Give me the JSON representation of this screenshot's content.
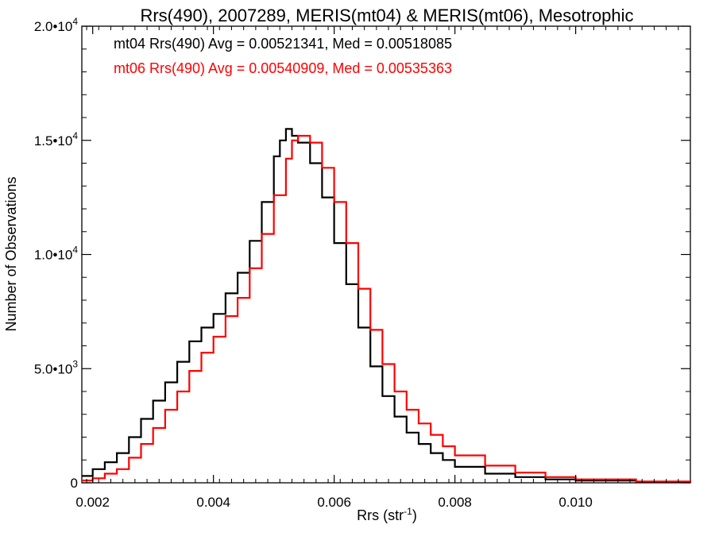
{
  "chart_data": {
    "type": "line",
    "title": "Rrs(490), 2007289, MERIS(mt04) & MERIS(mt06), Mesotrophic",
    "xlabel": "Rrs (str",
    "xlabel_sup": "-1",
    "xlabel_tail": ")",
    "ylabel": "Number of Observations",
    "xlim": [
      0.00182,
      0.0119
    ],
    "ylim": [
      0,
      20000
    ],
    "xticks": [
      {
        "value": 0.002,
        "label": "0.002"
      },
      {
        "value": 0.004,
        "label": "0.004"
      },
      {
        "value": 0.006,
        "label": "0.006"
      },
      {
        "value": 0.008,
        "label": "0.008"
      },
      {
        "value": 0.01,
        "label": "0.010"
      }
    ],
    "yticks": [
      {
        "value": 0,
        "mant": "0",
        "exp": ""
      },
      {
        "value": 5000,
        "mant": "5.0•10",
        "exp": "3"
      },
      {
        "value": 10000,
        "mant": "1.0•10",
        "exp": "4"
      },
      {
        "value": 15000,
        "mant": "1.5•10",
        "exp": "4"
      },
      {
        "value": 20000,
        "mant": "2.0•10",
        "exp": "4"
      }
    ],
    "legend_placement": "top-left",
    "grid": false,
    "series": [
      {
        "name": "mt04 Rrs(490) Avg = 0.00521341, Med = 0.00518085",
        "color": "#000000",
        "x": [
          0.00182,
          0.002,
          0.0022,
          0.0024,
          0.0026,
          0.0028,
          0.003,
          0.0032,
          0.0034,
          0.0036,
          0.0038,
          0.004,
          0.0042,
          0.0044,
          0.0046,
          0.0048,
          0.005,
          0.0051,
          0.0052,
          0.0053,
          0.0054,
          0.0056,
          0.0058,
          0.006,
          0.0062,
          0.0064,
          0.0066,
          0.0068,
          0.007,
          0.0072,
          0.0074,
          0.0076,
          0.0078,
          0.008,
          0.0085,
          0.009,
          0.0095,
          0.01,
          0.011,
          0.0119
        ],
        "y": [
          300,
          600,
          900,
          1300,
          2000,
          2800,
          3600,
          4400,
          5300,
          6200,
          6800,
          7400,
          8300,
          9200,
          10600,
          12300,
          14300,
          15000,
          15500,
          15200,
          14900,
          14000,
          12500,
          10500,
          8700,
          6800,
          5100,
          3800,
          2900,
          2200,
          1700,
          1300,
          1000,
          700,
          400,
          250,
          150,
          100,
          40,
          10
        ]
      },
      {
        "name": "mt06 Rrs(490) Avg = 0.00540909, Med = 0.00535363",
        "color": "#ff0000",
        "x": [
          0.00182,
          0.002,
          0.0022,
          0.0024,
          0.0026,
          0.0028,
          0.003,
          0.0032,
          0.0034,
          0.0036,
          0.0038,
          0.004,
          0.0042,
          0.0044,
          0.0046,
          0.0048,
          0.005,
          0.0052,
          0.0053,
          0.0054,
          0.0056,
          0.0058,
          0.006,
          0.0062,
          0.0064,
          0.0066,
          0.0068,
          0.007,
          0.0072,
          0.0074,
          0.0076,
          0.0078,
          0.008,
          0.0085,
          0.009,
          0.0095,
          0.01,
          0.011,
          0.0119
        ],
        "y": [
          100,
          200,
          400,
          600,
          1100,
          1700,
          2400,
          3200,
          4000,
          4900,
          5700,
          6400,
          7300,
          8100,
          9400,
          10900,
          12600,
          14200,
          15000,
          15200,
          14900,
          13800,
          12300,
          10500,
          8500,
          6700,
          5200,
          4000,
          3200,
          2600,
          2100,
          1600,
          1200,
          750,
          450,
          250,
          150,
          60,
          20
        ]
      }
    ]
  }
}
